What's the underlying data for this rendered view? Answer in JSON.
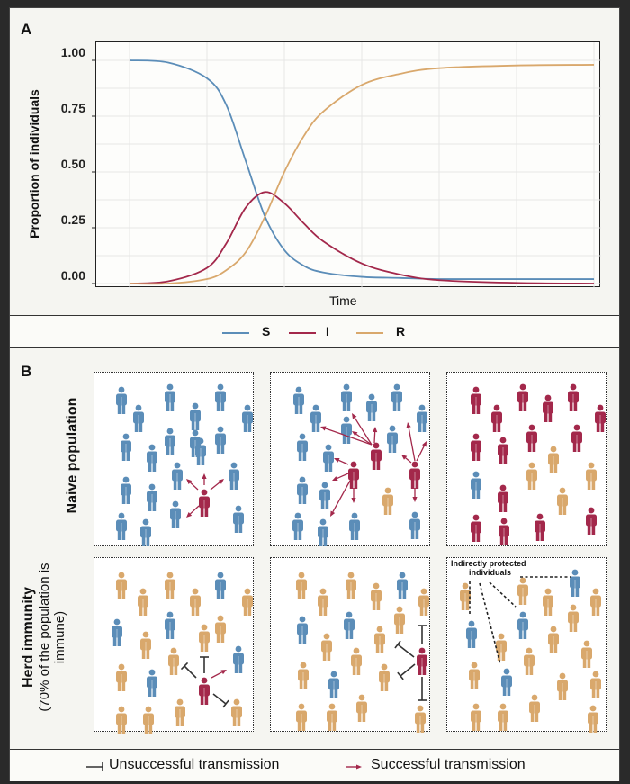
{
  "colors": {
    "S": "#5b8db8",
    "I": "#a3284b",
    "R": "#d9a86c",
    "unsuccessful": "#333333",
    "successful": "#a3284b"
  },
  "panel_a": {
    "label": "A",
    "ylabel": "Proportion of individuals",
    "xlabel": "Time",
    "yticks": [
      "1.00",
      "0.75",
      "0.50",
      "0.25",
      "0.00"
    ],
    "legend": [
      {
        "key": "S",
        "label": "S"
      },
      {
        "key": "I",
        "label": "I"
      },
      {
        "key": "R",
        "label": "R"
      }
    ]
  },
  "chart_data": {
    "type": "line",
    "title": "",
    "xlabel": "Time",
    "ylabel": "Proportion of individuals",
    "ylim": [
      0,
      1
    ],
    "yticks": [
      0,
      0.25,
      0.5,
      0.75,
      1.0
    ],
    "x": [
      0,
      0.5,
      1,
      1.25,
      1.5,
      1.75,
      2,
      2.25,
      2.5,
      3,
      3.5,
      4,
      5,
      6
    ],
    "series": [
      {
        "name": "S",
        "values": [
          1.0,
          0.99,
          0.92,
          0.8,
          0.55,
          0.3,
          0.15,
          0.08,
          0.05,
          0.03,
          0.025,
          0.02,
          0.02,
          0.02
        ]
      },
      {
        "name": "I",
        "values": [
          0.0,
          0.01,
          0.07,
          0.18,
          0.34,
          0.41,
          0.36,
          0.27,
          0.19,
          0.09,
          0.04,
          0.015,
          0.003,
          0.0
        ]
      },
      {
        "name": "R",
        "values": [
          0.0,
          0.0,
          0.02,
          0.06,
          0.14,
          0.3,
          0.5,
          0.66,
          0.77,
          0.89,
          0.94,
          0.965,
          0.977,
          0.98
        ]
      }
    ],
    "legend": [
      "S",
      "I",
      "R"
    ],
    "legend_position": "bottom",
    "grid": true
  },
  "panel_b": {
    "label": "B",
    "rows": [
      {
        "label": "Naive population",
        "sublabel": ""
      },
      {
        "label": "Herd immunity",
        "sublabel": "(70% of the population is immune)"
      }
    ],
    "annotation": "Indirectly protected individuals",
    "annotation_lines": [
      "Indirectly protected",
      "individuals"
    ],
    "legend": {
      "unsuccessful": "Unsuccessful transmission",
      "successful": "Successful transmission"
    }
  }
}
